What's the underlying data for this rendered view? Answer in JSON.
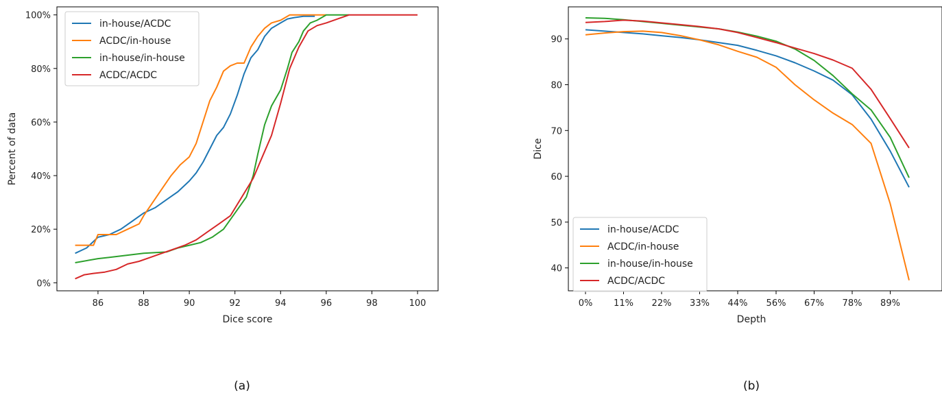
{
  "chart_data": [
    {
      "panel_label": "(a)",
      "type": "line",
      "xlabel": "Dice score",
      "ylabel": "Percent of data",
      "xlim": [
        84.2,
        100.9
      ],
      "ylim": [
        -3,
        103
      ],
      "xticks": [
        86,
        88,
        90,
        92,
        94,
        96,
        98,
        100
      ],
      "xtick_labels": [
        "86",
        "88",
        "90",
        "92",
        "94",
        "96",
        "98",
        "100"
      ],
      "yticks": [
        0,
        20,
        40,
        60,
        80,
        100
      ],
      "ytick_labels": [
        "0%",
        "20%",
        "40%",
        "60%",
        "80%",
        "100%"
      ],
      "legend_position": "upper-left",
      "series": [
        {
          "name": "in-house/ACDC",
          "color": "#1f77b4",
          "x": [
            85.0,
            85.5,
            86.0,
            86.5,
            87.0,
            87.5,
            88.0,
            88.5,
            89.0,
            89.5,
            90.0,
            90.3,
            90.6,
            90.9,
            91.2,
            91.5,
            91.8,
            92.1,
            92.4,
            92.7,
            93.0,
            93.3,
            93.6,
            94.0,
            94.3,
            94.6,
            95.0,
            95.5
          ],
          "y": [
            11,
            13,
            17,
            18,
            20,
            23,
            26,
            28,
            31,
            34,
            38,
            41,
            45,
            50,
            55,
            58,
            63,
            70,
            78,
            84,
            87,
            92,
            95,
            97,
            98.5,
            99,
            99.5,
            99.5
          ]
        },
        {
          "name": "ACDC/in-house",
          "color": "#ff7f0e",
          "x": [
            85.0,
            85.8,
            86.0,
            86.8,
            87.3,
            87.8,
            88.0,
            88.4,
            88.8,
            89.2,
            89.6,
            90.0,
            90.3,
            90.6,
            90.9,
            91.2,
            91.5,
            91.8,
            92.1,
            92.4,
            92.7,
            93.0,
            93.3,
            93.6,
            94.0,
            94.4,
            95.0,
            96.0
          ],
          "y": [
            14,
            14,
            18,
            18,
            20,
            22,
            25,
            30,
            35,
            40,
            44,
            47,
            52,
            60,
            68,
            73,
            79,
            81,
            82,
            82,
            88,
            92,
            95,
            97,
            98,
            100,
            100,
            100
          ]
        },
        {
          "name": "in-house/in-house",
          "color": "#2ca02c",
          "x": [
            85.0,
            86.0,
            86.5,
            87.5,
            88.0,
            89.0,
            89.5,
            90.0,
            90.5,
            91.0,
            91.5,
            92.0,
            92.5,
            92.8,
            93.0,
            93.3,
            93.6,
            94.0,
            94.3,
            94.5,
            94.8,
            95.0,
            95.3,
            95.6,
            96.0,
            96.5,
            97.0
          ],
          "y": [
            7.5,
            9,
            9.5,
            10.5,
            11,
            11.5,
            13,
            14,
            15,
            17,
            20,
            26,
            32,
            40,
            48,
            59,
            66,
            72,
            80,
            86,
            90,
            94,
            97,
            98,
            100,
            100,
            100
          ]
        },
        {
          "name": "ACDC/ACDC",
          "color": "#d62728",
          "x": [
            85.0,
            85.4,
            85.8,
            86.3,
            86.8,
            87.3,
            87.8,
            88.3,
            88.8,
            89.3,
            89.8,
            90.3,
            90.8,
            91.3,
            91.8,
            92.3,
            92.8,
            93.2,
            93.6,
            94.0,
            94.4,
            94.8,
            95.2,
            95.6,
            96.0,
            96.5,
            97.0,
            100.0
          ],
          "y": [
            1.5,
            3,
            3.5,
            4,
            5,
            7,
            8,
            9.5,
            11,
            12.5,
            14,
            16,
            19,
            22,
            25,
            32,
            39,
            47,
            55,
            67,
            80,
            88,
            94,
            96,
            97,
            98.5,
            100,
            100
          ]
        }
      ]
    },
    {
      "panel_label": "(b)",
      "type": "line",
      "xlabel": "Depth",
      "ylabel": "Dice",
      "xlim": [
        -0.05,
        1.04
      ],
      "ylim": [
        35,
        97
      ],
      "xticks": [
        0,
        0.111,
        0.222,
        0.333,
        0.444,
        0.556,
        0.667,
        0.778,
        0.889
      ],
      "xtick_labels": [
        "0%",
        "11%",
        "22%",
        "33%",
        "44%",
        "56%",
        "67%",
        "78%",
        "89%"
      ],
      "yticks": [
        40,
        50,
        60,
        70,
        80,
        90
      ],
      "ytick_labels": [
        "40",
        "50",
        "60",
        "70",
        "80",
        "90"
      ],
      "legend_position": "lower-left",
      "series": [
        {
          "name": "in-house/ACDC",
          "color": "#1f77b4",
          "x": [
            0,
            0.056,
            0.111,
            0.167,
            0.222,
            0.278,
            0.333,
            0.389,
            0.444,
            0.5,
            0.556,
            0.611,
            0.667,
            0.722,
            0.778,
            0.833,
            0.889,
            0.944
          ],
          "y": [
            92.0,
            91.7,
            91.4,
            91.1,
            90.7,
            90.3,
            89.8,
            89.2,
            88.6,
            87.5,
            86.3,
            84.8,
            83.0,
            81.0,
            77.8,
            72.5,
            65.5,
            57.6
          ]
        },
        {
          "name": "ACDC/in-house",
          "color": "#ff7f0e",
          "x": [
            0,
            0.056,
            0.111,
            0.167,
            0.222,
            0.278,
            0.333,
            0.389,
            0.444,
            0.5,
            0.556,
            0.611,
            0.667,
            0.722,
            0.778,
            0.833,
            0.889,
            0.944
          ],
          "y": [
            90.9,
            91.3,
            91.6,
            91.7,
            91.4,
            90.7,
            89.8,
            88.7,
            87.3,
            86.0,
            83.8,
            80.0,
            76.7,
            73.8,
            71.3,
            67.2,
            54.0,
            37.3
          ]
        },
        {
          "name": "in-house/in-house",
          "color": "#2ca02c",
          "x": [
            0,
            0.056,
            0.111,
            0.167,
            0.222,
            0.278,
            0.333,
            0.389,
            0.444,
            0.5,
            0.556,
            0.611,
            0.667,
            0.722,
            0.778,
            0.833,
            0.889,
            0.944
          ],
          "y": [
            94.6,
            94.5,
            94.2,
            93.8,
            93.4,
            93.0,
            92.6,
            92.2,
            91.5,
            90.6,
            89.5,
            87.8,
            85.3,
            82.0,
            78.0,
            74.5,
            68.5,
            59.7
          ]
        },
        {
          "name": "ACDC/ACDC",
          "color": "#d62728",
          "x": [
            0,
            0.056,
            0.111,
            0.167,
            0.222,
            0.278,
            0.333,
            0.389,
            0.444,
            0.5,
            0.556,
            0.611,
            0.667,
            0.722,
            0.778,
            0.833,
            0.889,
            0.944
          ],
          "y": [
            93.6,
            93.8,
            94.1,
            93.9,
            93.5,
            93.1,
            92.7,
            92.2,
            91.4,
            90.3,
            89.2,
            88.0,
            86.8,
            85.4,
            83.6,
            79.0,
            72.6,
            66.2
          ]
        }
      ]
    }
  ]
}
